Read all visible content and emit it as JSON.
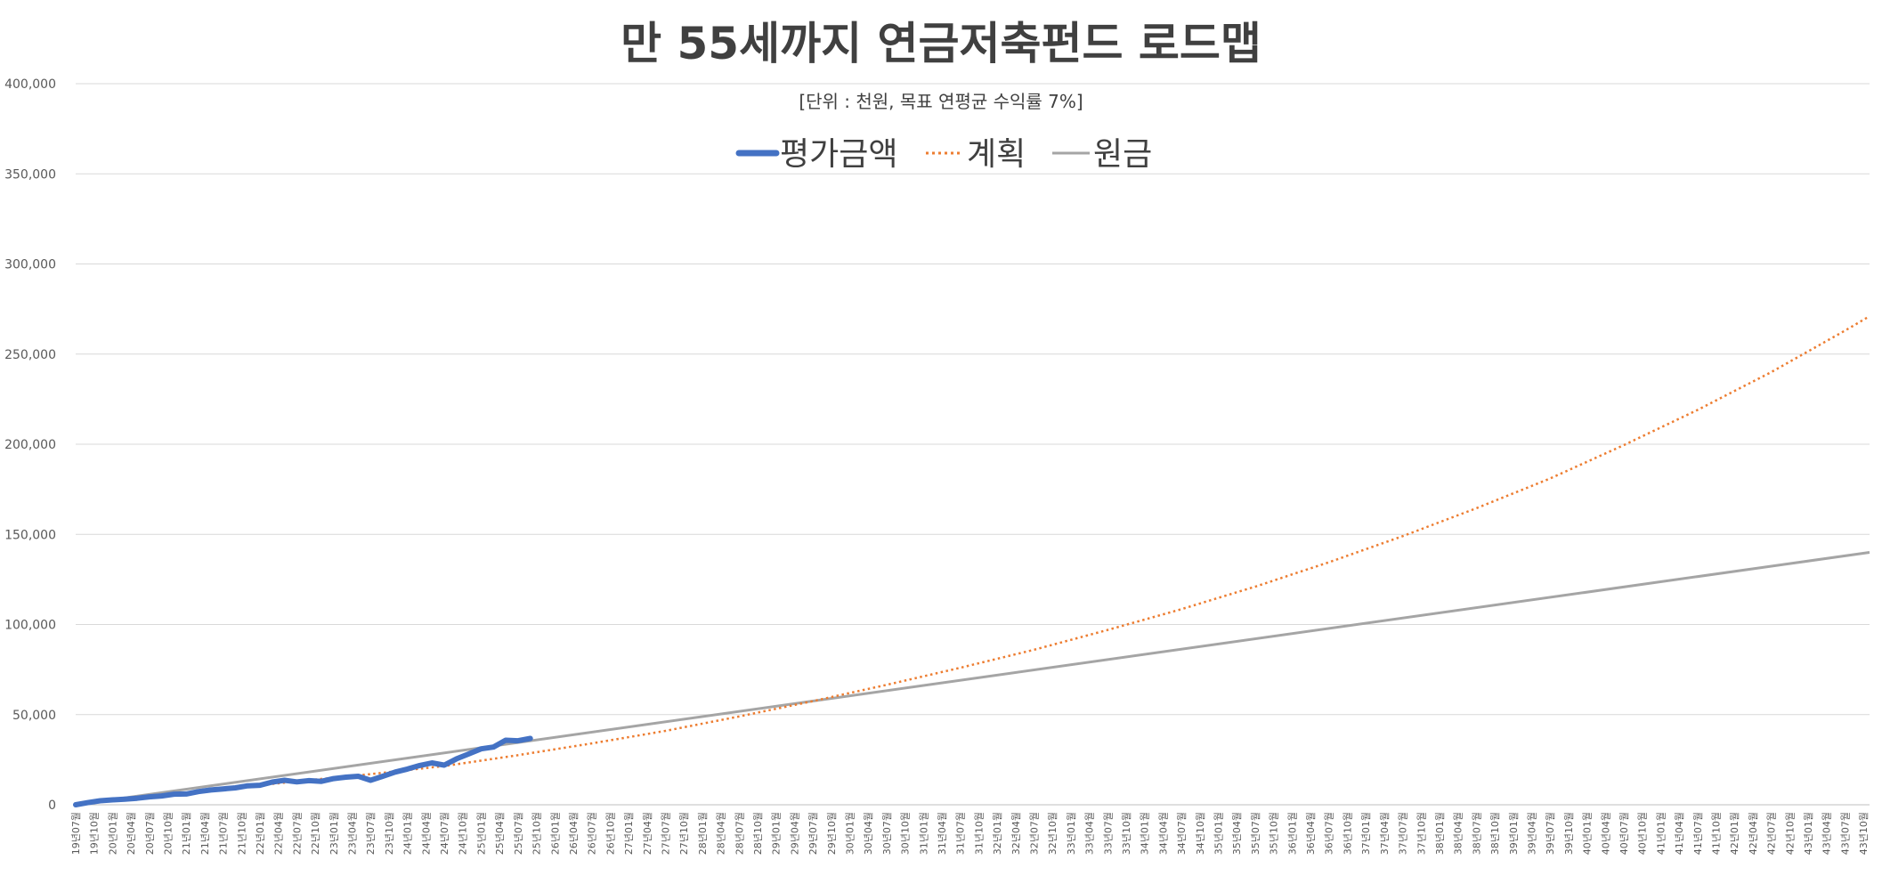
{
  "chart_data": {
    "type": "line",
    "title": "만 55세까지 연금저축펀드 로드맵",
    "subtitle": "[단위 : 천원, 목표 연평균 수익률 7%]",
    "xlabel": "",
    "ylabel": "",
    "ylim": [
      0,
      400000
    ],
    "y_ticks": [
      "0",
      "50,000",
      "100,000",
      "150,000",
      "200,000",
      "250,000",
      "300,000",
      "350,000",
      "400,000"
    ],
    "grid": true,
    "legend_position": "top-center",
    "x_start": {
      "year": 2019,
      "month": 7
    },
    "x_months": 292,
    "x_tick_step_months": 3,
    "colors": {
      "평가금액": "#4472C4",
      "계획": "#ED7D31",
      "원금": "#A5A5A5",
      "title": "#404040",
      "grid": "#D9D9D9"
    },
    "series": [
      {
        "name": "평가금액",
        "style": "solid-thick",
        "points": [
          [
            0,
            0
          ],
          [
            2,
            1200
          ],
          [
            4,
            2200
          ],
          [
            6,
            2700
          ],
          [
            8,
            3100
          ],
          [
            10,
            3600
          ],
          [
            12,
            4400
          ],
          [
            14,
            4900
          ],
          [
            16,
            5900
          ],
          [
            18,
            6000
          ],
          [
            20,
            7300
          ],
          [
            22,
            8200
          ],
          [
            24,
            8800
          ],
          [
            26,
            9400
          ],
          [
            28,
            10500
          ],
          [
            30,
            10800
          ],
          [
            32,
            12600
          ],
          [
            34,
            13600
          ],
          [
            36,
            12700
          ],
          [
            38,
            13400
          ],
          [
            40,
            13000
          ],
          [
            42,
            14500
          ],
          [
            44,
            15300
          ],
          [
            46,
            15800
          ],
          [
            48,
            13600
          ],
          [
            50,
            15800
          ],
          [
            52,
            18100
          ],
          [
            54,
            19800
          ],
          [
            56,
            21800
          ],
          [
            58,
            23200
          ],
          [
            60,
            22000
          ],
          [
            62,
            25500
          ],
          [
            64,
            28200
          ],
          [
            66,
            31000
          ],
          [
            68,
            32000
          ],
          [
            70,
            35800
          ],
          [
            72,
            35500
          ],
          [
            74,
            36800
          ]
        ]
      },
      {
        "name": "계획",
        "style": "dotted",
        "points": [
          [
            0,
            0
          ],
          [
            12,
            4300
          ],
          [
            24,
            8700
          ],
          [
            36,
            13000
          ],
          [
            48,
            17000
          ],
          [
            60,
            21500
          ],
          [
            72,
            27500
          ],
          [
            84,
            34000
          ],
          [
            96,
            41000
          ],
          [
            108,
            49000
          ],
          [
            120,
            57500
          ],
          [
            132,
            66500
          ],
          [
            144,
            76000
          ],
          [
            156,
            86000
          ],
          [
            168,
            97000
          ],
          [
            180,
            108500
          ],
          [
            192,
            121000
          ],
          [
            204,
            134500
          ],
          [
            216,
            149000
          ],
          [
            228,
            164500
          ],
          [
            240,
            181000
          ],
          [
            252,
            199500
          ],
          [
            264,
            219000
          ],
          [
            276,
            240000
          ],
          [
            288,
            263000
          ],
          [
            292,
            271000
          ]
        ]
      },
      {
        "name": "원금",
        "style": "solid",
        "points": [
          [
            0,
            0
          ],
          [
            292,
            140000
          ]
        ]
      }
    ]
  }
}
